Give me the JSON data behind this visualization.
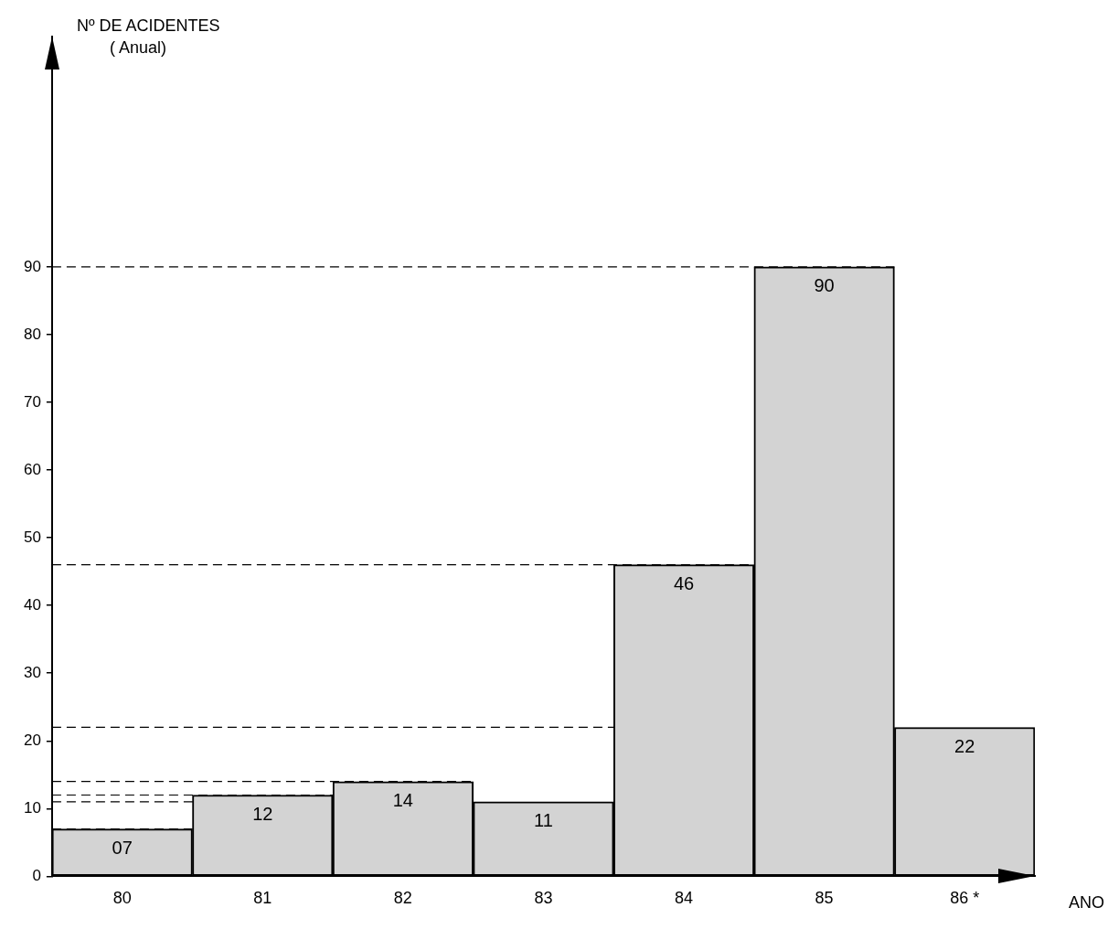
{
  "chart_data": {
    "type": "bar",
    "ylabel": "Nº DE ACIDENTES\n( Anual)",
    "xlabel": "ANO",
    "categories": [
      "80",
      "81",
      "82",
      "83",
      "84",
      "85",
      "86 *"
    ],
    "values": [
      7,
      12,
      14,
      11,
      46,
      90,
      22
    ],
    "value_labels": [
      "07",
      "12",
      "14",
      "11",
      "46",
      "90",
      "22"
    ],
    "color": "#d3d3d3",
    "ylim": [
      0,
      124
    ],
    "yticks": [
      0,
      10,
      20,
      30,
      40,
      50,
      60,
      70,
      80,
      90
    ],
    "grid": false,
    "legend": false,
    "ref_lines": [
      {
        "axis": "y",
        "value": 90,
        "line_style": "dashed"
      },
      {
        "axis": "y",
        "value": 46,
        "line_style": "dashed"
      },
      {
        "axis": "y",
        "value": 22,
        "line_style": "dashed"
      },
      {
        "axis": "y",
        "value": 14,
        "line_style": "dashed"
      },
      {
        "axis": "y",
        "value": 12,
        "line_style": "dashed"
      },
      {
        "axis": "y",
        "value": 11,
        "line_style": "dashed"
      },
      {
        "axis": "y",
        "value": 7,
        "line_style": "dashed"
      }
    ]
  }
}
